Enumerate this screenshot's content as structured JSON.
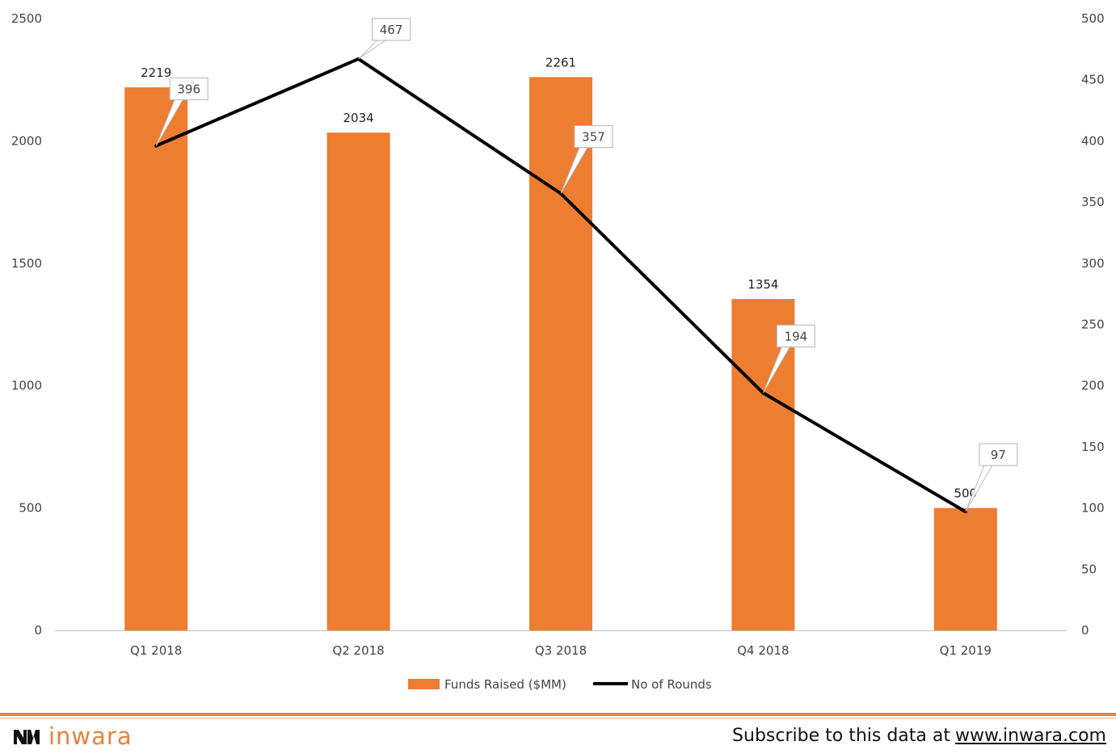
{
  "chart_data": {
    "type": "bar",
    "categories": [
      "Q1 2018",
      "Q2 2018",
      "Q3 2018",
      "Q4 2018",
      "Q1 2019"
    ],
    "series": [
      {
        "name": "Funds Raised ($MM)",
        "type": "bar",
        "axis": "left",
        "color": "#ed7d31",
        "values": [
          2219,
          2034,
          2261,
          1354,
          500
        ]
      },
      {
        "name": "No of Rounds",
        "type": "line",
        "axis": "right",
        "color": "#000000",
        "values": [
          396,
          467,
          357,
          194,
          97
        ]
      }
    ],
    "left_ticks": [
      0,
      500,
      1000,
      1500,
      2000,
      2500
    ],
    "right_ticks": [
      0,
      50,
      100,
      150,
      200,
      250,
      300,
      350,
      400,
      450,
      500
    ],
    "ylim_left": [
      0,
      2500
    ],
    "ylim_right": [
      0,
      500
    ],
    "grid": false,
    "legend_position": "bottom",
    "bar_labels": [
      "2219",
      "2034",
      "2261",
      "1354",
      "500"
    ],
    "line_labels": [
      "396",
      "467",
      "357",
      "194",
      "97"
    ]
  },
  "footer": {
    "brand": "inwara",
    "subscribe_text": "Subscribe to this data at",
    "subscribe_link": "www.inwara.com",
    "accent_color": "#e8823a",
    "logo_icon": "inwara-logo-icon"
  }
}
